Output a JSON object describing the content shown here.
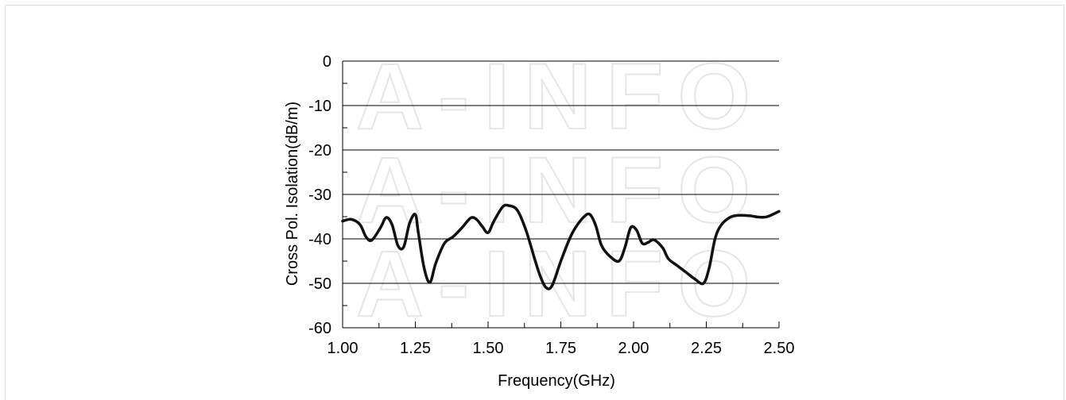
{
  "chart_data": {
    "type": "line",
    "title": "",
    "xlabel": "Frequency(GHz)",
    "ylabel": "Cross Pol. Isolation(dB/m)",
    "xlim": [
      1.0,
      2.5
    ],
    "ylim": [
      -60,
      0
    ],
    "x_ticks": [
      "1.00",
      "1.25",
      "1.50",
      "1.75",
      "2.00",
      "2.25",
      "2.50"
    ],
    "y_ticks": [
      "0",
      "-10",
      "-20",
      "-30",
      "-40",
      "-50",
      "-60"
    ],
    "grid": "horizontal",
    "legend": "none",
    "watermark": "A-INFO",
    "line_color": "#111111",
    "series": [
      {
        "x": [
          1.0,
          1.03,
          1.06,
          1.08,
          1.1,
          1.13,
          1.15,
          1.17,
          1.19,
          1.21,
          1.23,
          1.25,
          1.26,
          1.28,
          1.3,
          1.32,
          1.35,
          1.38,
          1.41,
          1.44,
          1.46,
          1.48,
          1.5,
          1.52,
          1.55,
          1.57,
          1.6,
          1.63,
          1.66,
          1.68,
          1.7,
          1.72,
          1.75,
          1.78,
          1.8,
          1.83,
          1.85,
          1.87,
          1.89,
          1.92,
          1.95,
          1.97,
          1.99,
          2.01,
          2.03,
          2.05,
          2.07,
          2.1,
          2.12,
          2.15,
          2.18,
          2.21,
          2.24,
          2.26,
          2.28,
          2.3,
          2.33,
          2.36,
          2.4,
          2.43,
          2.46,
          2.5
        ],
        "y": [
          -36.0,
          -35.6,
          -36.8,
          -39.5,
          -40.3,
          -37.5,
          -35.2,
          -36.8,
          -41.5,
          -41.8,
          -36.5,
          -34.5,
          -38.5,
          -46.5,
          -49.8,
          -45.5,
          -41.0,
          -39.5,
          -37.5,
          -35.3,
          -35.6,
          -37.2,
          -38.6,
          -36.0,
          -32.8,
          -32.5,
          -33.5,
          -38.0,
          -44.5,
          -48.5,
          -51.0,
          -50.5,
          -45.0,
          -40.0,
          -37.5,
          -35.0,
          -34.5,
          -37.0,
          -41.5,
          -44.0,
          -45.0,
          -42.0,
          -37.5,
          -38.0,
          -41.0,
          -40.8,
          -40.2,
          -42.0,
          -44.5,
          -46.0,
          -47.5,
          -49.0,
          -50.0,
          -46.5,
          -40.0,
          -37.0,
          -35.2,
          -34.7,
          -34.8,
          -35.1,
          -35.0,
          -33.8
        ]
      }
    ]
  }
}
